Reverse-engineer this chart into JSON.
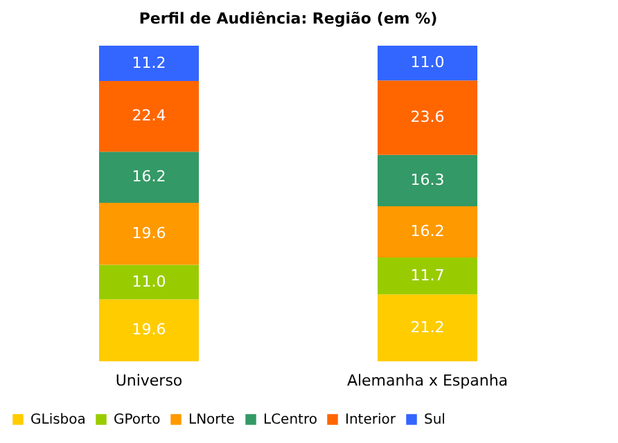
{
  "chart_data": {
    "type": "bar",
    "title": "Perfil de Audiência: Região (em %)",
    "categories": [
      "Universo",
      "Alemanha x Espanha"
    ],
    "stacked": true,
    "legend": "bottom",
    "grid": false,
    "series": [
      {
        "name": "GLisboa",
        "color": "#ffcc00",
        "values": [
          19.6,
          21.2
        ],
        "value_labels": [
          "19.6",
          "21.2"
        ]
      },
      {
        "name": "GPorto",
        "color": "#99cc00",
        "values": [
          11.0,
          11.7
        ],
        "value_labels": [
          "11.0",
          "11.7"
        ]
      },
      {
        "name": "LNorte",
        "color": "#ff9900",
        "values": [
          19.6,
          16.2
        ],
        "value_labels": [
          "19.6",
          "16.2"
        ]
      },
      {
        "name": "LCentro",
        "color": "#339966",
        "values": [
          16.2,
          16.3
        ],
        "value_labels": [
          "16.2",
          "16.3"
        ]
      },
      {
        "name": "Interior",
        "color": "#ff6600",
        "values": [
          22.4,
          23.6
        ],
        "value_labels": [
          "22.4",
          "23.6"
        ]
      },
      {
        "name": "Sul",
        "color": "#3366ff",
        "values": [
          11.2,
          11.0
        ],
        "value_labels": [
          "11.2",
          "11.0"
        ]
      }
    ]
  }
}
